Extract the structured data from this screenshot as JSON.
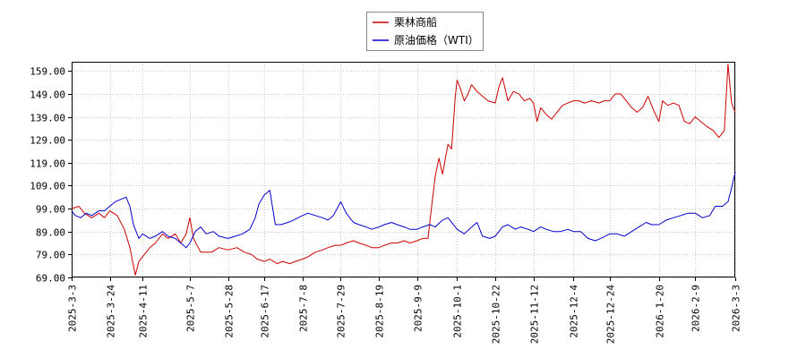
{
  "chart_data": {
    "type": "line",
    "xlabel": "",
    "ylabel": "",
    "ylim": [
      69,
      163
    ],
    "xlim": [
      "2025-03-03",
      "2026-03-03"
    ],
    "grid": true,
    "legend_position": "top-center",
    "y_ticks": [
      "69.00",
      "79.00",
      "89.00",
      "99.00",
      "109.00",
      "119.00",
      "129.00",
      "139.00",
      "149.00",
      "159.00"
    ],
    "x_ticks": [
      "2025-3-3",
      "2025-3-24",
      "2025-4-11",
      "2025-5-7",
      "2025-5-28",
      "2025-6-17",
      "2025-7-8",
      "2025-7-29",
      "2025-8-19",
      "2025-9-9",
      "2025-10-1",
      "2025-10-22",
      "2025-11-12",
      "2025-12-4",
      "2025-12-24",
      "2026-1-20",
      "2026-2-9",
      "2026-3-3"
    ],
    "series": [
      {
        "name": "栗林商船",
        "color": "#cc0000",
        "points": [
          [
            "2025-03-03",
            99
          ],
          [
            "2025-03-07",
            100
          ],
          [
            "2025-03-10",
            97
          ],
          [
            "2025-03-14",
            95
          ],
          [
            "2025-03-18",
            97
          ],
          [
            "2025-03-21",
            95
          ],
          [
            "2025-03-24",
            98
          ],
          [
            "2025-03-28",
            96
          ],
          [
            "2025-04-01",
            90
          ],
          [
            "2025-04-04",
            82
          ],
          [
            "2025-04-07",
            70
          ],
          [
            "2025-04-09",
            76
          ],
          [
            "2025-04-11",
            78
          ],
          [
            "2025-04-15",
            82
          ],
          [
            "2025-04-18",
            84
          ],
          [
            "2025-04-22",
            88
          ],
          [
            "2025-04-25",
            86
          ],
          [
            "2025-04-29",
            88
          ],
          [
            "2025-05-02",
            84
          ],
          [
            "2025-05-05",
            88
          ],
          [
            "2025-05-07",
            95
          ],
          [
            "2025-05-09",
            86
          ],
          [
            "2025-05-13",
            80
          ],
          [
            "2025-05-19",
            80
          ],
          [
            "2025-05-23",
            82
          ],
          [
            "2025-05-28",
            81
          ],
          [
            "2025-06-02",
            82
          ],
          [
            "2025-06-06",
            80
          ],
          [
            "2025-06-10",
            79
          ],
          [
            "2025-06-13",
            77
          ],
          [
            "2025-06-17",
            76
          ],
          [
            "2025-06-20",
            77
          ],
          [
            "2025-06-24",
            75
          ],
          [
            "2025-06-27",
            76
          ],
          [
            "2025-07-01",
            75
          ],
          [
            "2025-07-04",
            76
          ],
          [
            "2025-07-08",
            77
          ],
          [
            "2025-07-11",
            78
          ],
          [
            "2025-07-15",
            80
          ],
          [
            "2025-07-19",
            81
          ],
          [
            "2025-07-22",
            82
          ],
          [
            "2025-07-26",
            83
          ],
          [
            "2025-07-29",
            83
          ],
          [
            "2025-08-01",
            84
          ],
          [
            "2025-08-05",
            85
          ],
          [
            "2025-08-08",
            84
          ],
          [
            "2025-08-12",
            83
          ],
          [
            "2025-08-15",
            82
          ],
          [
            "2025-08-19",
            82
          ],
          [
            "2025-08-22",
            83
          ],
          [
            "2025-08-26",
            84
          ],
          [
            "2025-08-29",
            84
          ],
          [
            "2025-09-02",
            85
          ],
          [
            "2025-09-05",
            84
          ],
          [
            "2025-09-09",
            85
          ],
          [
            "2025-09-12",
            86
          ],
          [
            "2025-09-15",
            86
          ],
          [
            "2025-09-17",
            100
          ],
          [
            "2025-09-19",
            113
          ],
          [
            "2025-09-21",
            121
          ],
          [
            "2025-09-23",
            114
          ],
          [
            "2025-09-26",
            127
          ],
          [
            "2025-09-28",
            125
          ],
          [
            "2025-09-30",
            148
          ],
          [
            "2025-10-01",
            155
          ],
          [
            "2025-10-03",
            151
          ],
          [
            "2025-10-05",
            146
          ],
          [
            "2025-10-07",
            149
          ],
          [
            "2025-10-09",
            153
          ],
          [
            "2025-10-12",
            150
          ],
          [
            "2025-10-15",
            148
          ],
          [
            "2025-10-18",
            146
          ],
          [
            "2025-10-22",
            145
          ],
          [
            "2025-10-24",
            152
          ],
          [
            "2025-10-26",
            156
          ],
          [
            "2025-10-29",
            146
          ],
          [
            "2025-11-01",
            150
          ],
          [
            "2025-11-04",
            149
          ],
          [
            "2025-11-07",
            146
          ],
          [
            "2025-11-10",
            147
          ],
          [
            "2025-11-12",
            145
          ],
          [
            "2025-11-14",
            137
          ],
          [
            "2025-11-16",
            143
          ],
          [
            "2025-11-19",
            140
          ],
          [
            "2025-11-22",
            138
          ],
          [
            "2025-11-25",
            141
          ],
          [
            "2025-11-28",
            144
          ],
          [
            "2025-12-01",
            145
          ],
          [
            "2025-12-04",
            146
          ],
          [
            "2025-12-07",
            146
          ],
          [
            "2025-12-10",
            145
          ],
          [
            "2025-12-14",
            146
          ],
          [
            "2025-12-18",
            145
          ],
          [
            "2025-12-21",
            146
          ],
          [
            "2025-12-24",
            146
          ],
          [
            "2025-12-27",
            149
          ],
          [
            "2025-12-30",
            149
          ],
          [
            "2026-01-02",
            146
          ],
          [
            "2026-01-05",
            143
          ],
          [
            "2026-01-08",
            141
          ],
          [
            "2026-01-11",
            143
          ],
          [
            "2026-01-14",
            148
          ],
          [
            "2026-01-17",
            142
          ],
          [
            "2026-01-20",
            137
          ],
          [
            "2026-01-22",
            146
          ],
          [
            "2026-01-25",
            144
          ],
          [
            "2026-01-28",
            145
          ],
          [
            "2026-01-31",
            144
          ],
          [
            "2026-02-03",
            137
          ],
          [
            "2026-02-06",
            136
          ],
          [
            "2026-02-09",
            139
          ],
          [
            "2026-02-12",
            137
          ],
          [
            "2026-02-15",
            135
          ],
          [
            "2026-02-19",
            133
          ],
          [
            "2026-02-22",
            130
          ],
          [
            "2026-02-25",
            133
          ],
          [
            "2026-02-27",
            162
          ],
          [
            "2026-03-01",
            145
          ],
          [
            "2026-03-03",
            141
          ]
        ]
      },
      {
        "name": "原油価格（WTI）",
        "color": "#0000cc",
        "points": [
          [
            "2025-03-03",
            98
          ],
          [
            "2025-03-05",
            96
          ],
          [
            "2025-03-08",
            95
          ],
          [
            "2025-03-11",
            97
          ],
          [
            "2025-03-14",
            96
          ],
          [
            "2025-03-18",
            98
          ],
          [
            "2025-03-21",
            98
          ],
          [
            "2025-03-24",
            100
          ],
          [
            "2025-03-27",
            102
          ],
          [
            "2025-03-30",
            103
          ],
          [
            "2025-04-02",
            104
          ],
          [
            "2025-04-04",
            100
          ],
          [
            "2025-04-06",
            92
          ],
          [
            "2025-04-09",
            86
          ],
          [
            "2025-04-11",
            88
          ],
          [
            "2025-04-15",
            86
          ],
          [
            "2025-04-18",
            87
          ],
          [
            "2025-04-22",
            89
          ],
          [
            "2025-04-25",
            87
          ],
          [
            "2025-04-29",
            86
          ],
          [
            "2025-05-02",
            84
          ],
          [
            "2025-05-05",
            82
          ],
          [
            "2025-05-07",
            84
          ],
          [
            "2025-05-10",
            89
          ],
          [
            "2025-05-13",
            91
          ],
          [
            "2025-05-16",
            88
          ],
          [
            "2025-05-20",
            89
          ],
          [
            "2025-05-23",
            87
          ],
          [
            "2025-05-28",
            86
          ],
          [
            "2025-06-01",
            87
          ],
          [
            "2025-06-05",
            88
          ],
          [
            "2025-06-09",
            90
          ],
          [
            "2025-06-12",
            95
          ],
          [
            "2025-06-14",
            101
          ],
          [
            "2025-06-17",
            105
          ],
          [
            "2025-06-20",
            107
          ],
          [
            "2025-06-23",
            92
          ],
          [
            "2025-06-26",
            92
          ],
          [
            "2025-06-30",
            93
          ],
          [
            "2025-07-03",
            94
          ],
          [
            "2025-07-08",
            96
          ],
          [
            "2025-07-11",
            97
          ],
          [
            "2025-07-15",
            96
          ],
          [
            "2025-07-19",
            95
          ],
          [
            "2025-07-22",
            94
          ],
          [
            "2025-07-25",
            96
          ],
          [
            "2025-07-29",
            102
          ],
          [
            "2025-08-01",
            97
          ],
          [
            "2025-08-05",
            93
          ],
          [
            "2025-08-08",
            92
          ],
          [
            "2025-08-12",
            91
          ],
          [
            "2025-08-15",
            90
          ],
          [
            "2025-08-19",
            91
          ],
          [
            "2025-08-22",
            92
          ],
          [
            "2025-08-26",
            93
          ],
          [
            "2025-08-29",
            92
          ],
          [
            "2025-09-02",
            91
          ],
          [
            "2025-09-05",
            90
          ],
          [
            "2025-09-09",
            90
          ],
          [
            "2025-09-12",
            91
          ],
          [
            "2025-09-16",
            92
          ],
          [
            "2025-09-19",
            91
          ],
          [
            "2025-09-23",
            94
          ],
          [
            "2025-09-26",
            95
          ],
          [
            "2025-10-01",
            90
          ],
          [
            "2025-10-05",
            88
          ],
          [
            "2025-10-09",
            91
          ],
          [
            "2025-10-12",
            93
          ],
          [
            "2025-10-15",
            87
          ],
          [
            "2025-10-19",
            86
          ],
          [
            "2025-10-22",
            87
          ],
          [
            "2025-10-26",
            91
          ],
          [
            "2025-10-29",
            92
          ],
          [
            "2025-11-02",
            90
          ],
          [
            "2025-11-05",
            91
          ],
          [
            "2025-11-09",
            90
          ],
          [
            "2025-11-12",
            89
          ],
          [
            "2025-11-16",
            91
          ],
          [
            "2025-11-19",
            90
          ],
          [
            "2025-11-23",
            89
          ],
          [
            "2025-11-27",
            89
          ],
          [
            "2025-12-01",
            90
          ],
          [
            "2025-12-04",
            89
          ],
          [
            "2025-12-08",
            89
          ],
          [
            "2025-12-12",
            86
          ],
          [
            "2025-12-16",
            85
          ],
          [
            "2025-12-19",
            86
          ],
          [
            "2025-12-24",
            88
          ],
          [
            "2025-12-28",
            88
          ],
          [
            "2026-01-01",
            87
          ],
          [
            "2026-01-05",
            89
          ],
          [
            "2026-01-09",
            91
          ],
          [
            "2026-01-13",
            93
          ],
          [
            "2026-01-16",
            92
          ],
          [
            "2026-01-20",
            92
          ],
          [
            "2026-01-24",
            94
          ],
          [
            "2026-01-28",
            95
          ],
          [
            "2026-02-01",
            96
          ],
          [
            "2026-02-05",
            97
          ],
          [
            "2026-02-09",
            97
          ],
          [
            "2026-02-13",
            95
          ],
          [
            "2026-02-17",
            96
          ],
          [
            "2026-02-20",
            100
          ],
          [
            "2026-02-24",
            100
          ],
          [
            "2026-02-27",
            102
          ],
          [
            "2026-03-01",
            108
          ],
          [
            "2026-03-03",
            115
          ]
        ]
      }
    ]
  }
}
